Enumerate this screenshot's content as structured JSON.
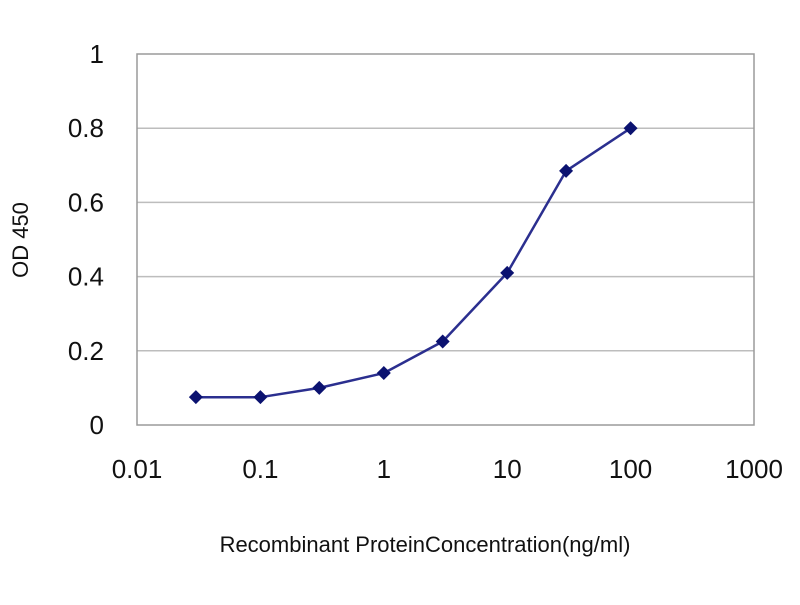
{
  "chart_data": {
    "type": "line",
    "title": "",
    "xlabel": "Recombinant ProteinConcentration(ng/ml)",
    "ylabel": "OD 450",
    "x_scale": "log",
    "xlim": [
      0.01,
      1000
    ],
    "ylim": [
      0,
      1
    ],
    "x_ticks": [
      "0.01",
      "0.1",
      "1",
      "10",
      "100",
      "1000"
    ],
    "y_ticks": [
      "0",
      "0.2",
      "0.4",
      "0.6",
      "0.8",
      "1"
    ],
    "grid": "horizontal",
    "legend": "none",
    "series": [
      {
        "x": [
          0.03,
          0.1,
          0.3,
          1,
          3,
          10,
          30,
          100
        ],
        "y": [
          0.075,
          0.075,
          0.1,
          0.14,
          0.225,
          0.41,
          0.685,
          0.8
        ]
      }
    ]
  },
  "colors": {
    "series_line": "#2b2f8f",
    "series_marker": "#0b1270",
    "grid": "#bdbdbd",
    "frame": "#9a9a9a"
  }
}
